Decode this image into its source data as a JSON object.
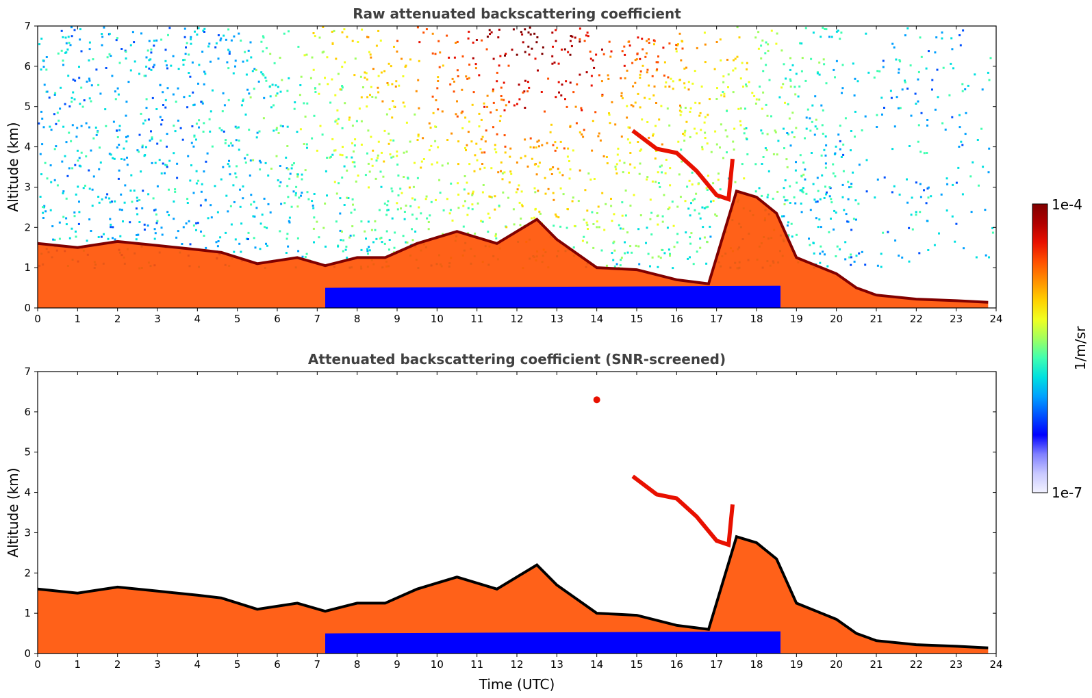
{
  "chart_data": [
    {
      "type": "heatmap",
      "title": "Raw attenuated backscattering coefficient",
      "xlabel": "",
      "ylabel": "Altitude (km)",
      "xlim": [
        0,
        24
      ],
      "ylim": [
        0,
        7
      ],
      "xticks": [
        0,
        1,
        2,
        3,
        4,
        5,
        6,
        7,
        8,
        9,
        10,
        11,
        12,
        13,
        14,
        15,
        16,
        17,
        18,
        19,
        20,
        21,
        22,
        23,
        24
      ],
      "yticks": [
        0,
        1,
        2,
        3,
        4,
        5,
        6,
        7
      ],
      "features": {
        "boundary_layer_top_km": [
          [
            0,
            1.6
          ],
          [
            1,
            1.5
          ],
          [
            2,
            1.65
          ],
          [
            3,
            1.55
          ],
          [
            4,
            1.45
          ],
          [
            4.6,
            1.38
          ],
          [
            5.5,
            1.1
          ],
          [
            6.5,
            1.25
          ],
          [
            7.2,
            1.05
          ],
          [
            8,
            1.25
          ],
          [
            8.7,
            1.25
          ],
          [
            9.5,
            1.6
          ],
          [
            10.5,
            1.9
          ],
          [
            11.5,
            1.6
          ],
          [
            12.5,
            2.2
          ],
          [
            13,
            1.7
          ],
          [
            14,
            1.0
          ],
          [
            15,
            0.95
          ],
          [
            16,
            0.7
          ],
          [
            16.8,
            0.6
          ],
          [
            17.5,
            2.9
          ],
          [
            18,
            2.75
          ],
          [
            18.5,
            2.35
          ],
          [
            19,
            1.25
          ],
          [
            19.5,
            1.05
          ],
          [
            20,
            0.85
          ],
          [
            20.5,
            0.5
          ],
          [
            21,
            0.32
          ],
          [
            22,
            0.22
          ],
          [
            23,
            0.18
          ],
          [
            23.8,
            0.14
          ]
        ],
        "elevated_layer_km": [
          [
            14.9,
            4.4
          ],
          [
            15.5,
            3.95
          ],
          [
            16,
            3.85
          ],
          [
            16.5,
            3.4
          ],
          [
            17.0,
            2.8
          ],
          [
            17.3,
            2.7
          ],
          [
            17.4,
            3.7
          ]
        ],
        "noise_floor": "high above 2 km, strongest 9–17 UTC"
      }
    },
    {
      "type": "heatmap",
      "title": "Attenuated backscattering coefficient (SNR-screened)",
      "xlabel": "Time (UTC)",
      "ylabel": "Altitude (km)",
      "xlim": [
        0,
        24
      ],
      "ylim": [
        0,
        7
      ],
      "xticks": [
        0,
        1,
        2,
        3,
        4,
        5,
        6,
        7,
        8,
        9,
        10,
        11,
        12,
        13,
        14,
        15,
        16,
        17,
        18,
        19,
        20,
        21,
        22,
        23,
        24
      ],
      "yticks": [
        0,
        1,
        2,
        3,
        4,
        5,
        6,
        7
      ],
      "features": {
        "screening": "pixels below SNR threshold removed (white)",
        "isolated_cloud_km": [
          [
            14.0,
            6.3
          ]
        ]
      }
    }
  ],
  "colorbar": {
    "label": "1/m/sr",
    "max_label": "1e-4",
    "min_label": "1e-7",
    "scale": "log",
    "colormap": [
      "#f2f2ff",
      "#c8c8ff",
      "#8080ff",
      "#0000ff",
      "#0050ff",
      "#00a0ff",
      "#00e0e0",
      "#40ffb0",
      "#a0ff60",
      "#f0ff20",
      "#ffd000",
      "#ff9000",
      "#ff5000",
      "#e81000",
      "#b00000",
      "#800000"
    ]
  }
}
